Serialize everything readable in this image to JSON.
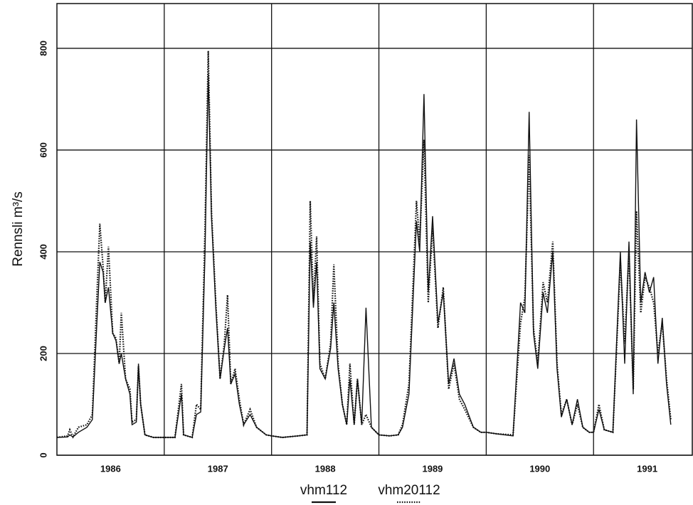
{
  "chart_data": {
    "type": "line",
    "y_label": "Rennsli m³/s",
    "x": [
      1986.0,
      1986.1,
      1986.12,
      1986.15,
      1986.2,
      1986.28,
      1986.33,
      1986.37,
      1986.4,
      1986.43,
      1986.45,
      1986.48,
      1986.52,
      1986.55,
      1986.58,
      1986.6,
      1986.64,
      1986.68,
      1986.7,
      1986.74,
      1986.76,
      1986.78,
      1986.82,
      1986.9,
      1987.0,
      1987.1,
      1987.16,
      1987.18,
      1987.26,
      1987.3,
      1987.34,
      1987.38,
      1987.41,
      1987.44,
      1987.48,
      1987.52,
      1987.56,
      1987.59,
      1987.62,
      1987.66,
      1987.7,
      1987.74,
      1987.8,
      1987.86,
      1987.95,
      1988.0,
      1988.1,
      1988.25,
      1988.33,
      1988.36,
      1988.39,
      1988.42,
      1988.45,
      1988.5,
      1988.55,
      1988.58,
      1988.62,
      1988.66,
      1988.7,
      1988.73,
      1988.77,
      1988.8,
      1988.84,
      1988.88,
      1988.93,
      1989.0,
      1989.1,
      1989.18,
      1989.22,
      1989.28,
      1989.35,
      1989.38,
      1989.42,
      1989.46,
      1989.5,
      1989.55,
      1989.6,
      1989.65,
      1989.7,
      1989.75,
      1989.8,
      1989.88,
      1989.95,
      1990.0,
      1990.1,
      1990.25,
      1990.32,
      1990.36,
      1990.4,
      1990.44,
      1990.48,
      1990.53,
      1990.57,
      1990.62,
      1990.66,
      1990.7,
      1990.75,
      1990.8,
      1990.85,
      1990.9,
      1990.96,
      1991.0,
      1991.05,
      1991.1,
      1991.18,
      1991.25,
      1991.29,
      1991.33,
      1991.37,
      1991.4,
      1991.44,
      1991.48,
      1991.52,
      1991.56,
      1991.6,
      1991.64,
      1991.68,
      1991.72
    ],
    "series": [
      {
        "name": "vhm112",
        "color": "#111111",
        "dash": "solid",
        "values": [
          35,
          36,
          40,
          36,
          45,
          55,
          70,
          250,
          380,
          360,
          300,
          330,
          240,
          225,
          180,
          200,
          150,
          120,
          60,
          65,
          180,
          100,
          40,
          35,
          35,
          35,
          120,
          40,
          35,
          80,
          85,
          400,
          750,
          470,
          290,
          150,
          210,
          250,
          140,
          160,
          100,
          60,
          80,
          55,
          40,
          38,
          35,
          38,
          40,
          420,
          290,
          380,
          170,
          150,
          210,
          300,
          170,
          100,
          60,
          150,
          60,
          150,
          60,
          290,
          55,
          40,
          38,
          40,
          55,
          120,
          460,
          400,
          710,
          320,
          470,
          260,
          320,
          140,
          190,
          120,
          100,
          55,
          45,
          45,
          42,
          38,
          300,
          280,
          675,
          240,
          170,
          320,
          280,
          400,
          170,
          75,
          110,
          60,
          110,
          55,
          45,
          45,
          90,
          50,
          45,
          400,
          180,
          420,
          120,
          660,
          300,
          360,
          320,
          350,
          180,
          270,
          140,
          60
        ]
      },
      {
        "name": "vhm20112",
        "color": "#111111",
        "dash": "dotted",
        "values": [
          35,
          38,
          50,
          36,
          55,
          60,
          80,
          300,
          455,
          370,
          300,
          410,
          240,
          230,
          180,
          280,
          150,
          130,
          65,
          70,
          175,
          100,
          40,
          35,
          35,
          35,
          140,
          40,
          35,
          100,
          90,
          450,
          795,
          480,
          300,
          150,
          220,
          315,
          140,
          170,
          110,
          60,
          90,
          55,
          40,
          38,
          35,
          38,
          40,
          500,
          300,
          430,
          180,
          150,
          220,
          375,
          180,
          100,
          60,
          180,
          60,
          150,
          60,
          80,
          55,
          40,
          38,
          40,
          60,
          140,
          500,
          420,
          620,
          300,
          450,
          250,
          330,
          130,
          180,
          110,
          90,
          55,
          45,
          45,
          42,
          40,
          260,
          310,
          590,
          250,
          180,
          340,
          300,
          420,
          180,
          80,
          110,
          60,
          100,
          55,
          45,
          45,
          100,
          50,
          45,
          380,
          220,
          400,
          130,
          480,
          280,
          350,
          330,
          300,
          200,
          260,
          150,
          70
        ]
      }
    ],
    "xlim": [
      1986,
      1991.92
    ],
    "xticks": [
      {
        "value": 1986.5,
        "label": "1986"
      },
      {
        "value": 1987.5,
        "label": "1987"
      },
      {
        "value": 1988.5,
        "label": "1988"
      },
      {
        "value": 1989.5,
        "label": "1989"
      },
      {
        "value": 1990.5,
        "label": "1990"
      },
      {
        "value": 1991.5,
        "label": "1991"
      }
    ],
    "x_gridlines": [
      1987,
      1988,
      1989,
      1990,
      1991
    ],
    "ylim": [
      0,
      888
    ],
    "yticks": [
      0,
      200,
      400,
      600,
      800
    ],
    "grid": true
  }
}
